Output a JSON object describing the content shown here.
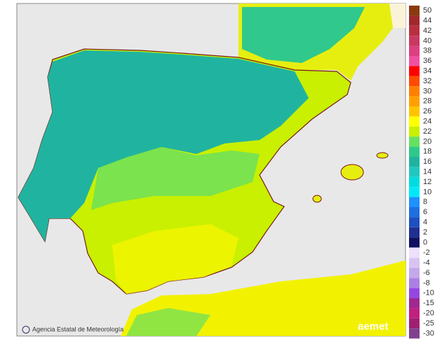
{
  "footer": {
    "agency": "Agencia Estatal de Meteorología",
    "logo": "aemet"
  },
  "legend": {
    "entries": [
      {
        "label": "50",
        "color": "#8b3a0e"
      },
      {
        "label": "44",
        "color": "#a0282d"
      },
      {
        "label": "42",
        "color": "#b8303f"
      },
      {
        "label": "40",
        "color": "#c83860"
      },
      {
        "label": "38",
        "color": "#dc4080"
      },
      {
        "label": "36",
        "color": "#f050a0"
      },
      {
        "label": "34",
        "color": "#ff0000"
      },
      {
        "label": "32",
        "color": "#ff4a00"
      },
      {
        "label": "30",
        "color": "#ff7f00"
      },
      {
        "label": "28",
        "color": "#ffa000"
      },
      {
        "label": "26",
        "color": "#ffc400"
      },
      {
        "label": "24",
        "color": "#ffff00"
      },
      {
        "label": "22",
        "color": "#c8f000"
      },
      {
        "label": "20",
        "color": "#66e060"
      },
      {
        "label": "18",
        "color": "#30c88c"
      },
      {
        "label": "16",
        "color": "#20b4a0"
      },
      {
        "label": "14",
        "color": "#20c8c0"
      },
      {
        "label": "12",
        "color": "#00dce0"
      },
      {
        "label": "10",
        "color": "#00e8f8"
      },
      {
        "label": "8",
        "color": "#1e90ff"
      },
      {
        "label": "6",
        "color": "#1e6fe0"
      },
      {
        "label": "4",
        "color": "#1e50c0"
      },
      {
        "label": "2",
        "color": "#203090"
      },
      {
        "label": "0",
        "color": "#101060"
      }
    ],
    "negative_entries": [
      {
        "label": "-2",
        "color": "#ece0fa"
      },
      {
        "label": "-4",
        "color": "#d8c4f2"
      },
      {
        "label": "-6",
        "color": "#c4a8ea"
      },
      {
        "label": "-8",
        "color": "#ac80e2"
      },
      {
        "label": "-10",
        "color": "#9448e0"
      },
      {
        "label": "-15",
        "color": "#a02890"
      },
      {
        "label": "-20",
        "color": "#c02080"
      },
      {
        "label": "-25",
        "color": "#a02070"
      },
      {
        "label": "-30",
        "color": "#804090"
      }
    ]
  }
}
